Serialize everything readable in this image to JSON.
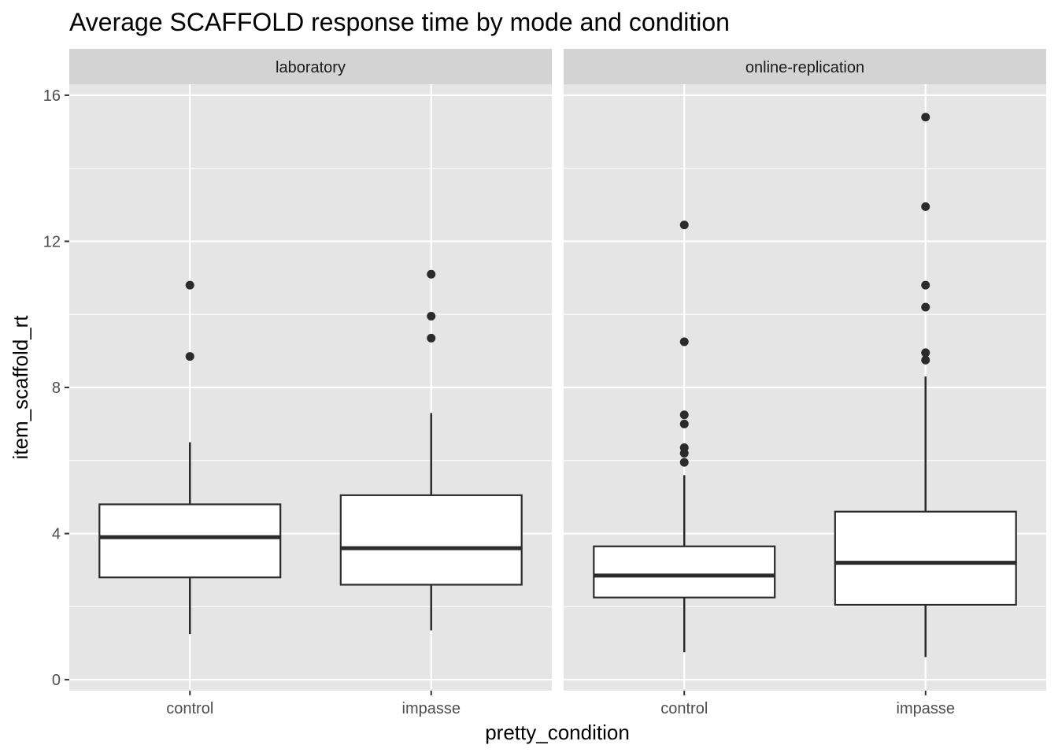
{
  "chart_data": {
    "type": "boxplot",
    "title": "Average SCAFFOLD response time by mode and condition",
    "xlabel": "pretty_condition",
    "ylabel": "item_scaffold_rt",
    "ylim": [
      -0.3,
      16.3
    ],
    "yticks": [
      0,
      4,
      8,
      12,
      16
    ],
    "grid": true,
    "categories": [
      "control",
      "impasse"
    ],
    "colors": {
      "panel_background": "#e5e5e5",
      "strip_background": "#d3d3d3",
      "gridline": "#ffffff",
      "box_fill": "#ffffff",
      "box_stroke": "#2b2b2b",
      "outlier": "#2b2b2b"
    },
    "facets": [
      {
        "label": "laboratory",
        "boxes": [
          {
            "category": "control",
            "whisker_low": 1.25,
            "q1": 2.8,
            "median": 3.9,
            "q3": 4.8,
            "whisker_high": 6.5,
            "outliers": [
              8.85,
              10.8
            ]
          },
          {
            "category": "impasse",
            "whisker_low": 1.35,
            "q1": 2.6,
            "median": 3.6,
            "q3": 5.05,
            "whisker_high": 7.3,
            "outliers": [
              9.35,
              9.95,
              11.1
            ]
          }
        ]
      },
      {
        "label": "online-replication",
        "boxes": [
          {
            "category": "control",
            "whisker_low": 0.75,
            "q1": 2.25,
            "median": 2.85,
            "q3": 3.65,
            "whisker_high": 5.6,
            "outliers": [
              5.95,
              6.2,
              6.35,
              7.0,
              7.25,
              9.25,
              12.45
            ]
          },
          {
            "category": "impasse",
            "whisker_low": 0.62,
            "q1": 2.05,
            "median": 3.2,
            "q3": 4.6,
            "whisker_high": 8.3,
            "outliers": [
              8.75,
              8.95,
              10.2,
              10.8,
              12.95,
              15.4
            ]
          }
        ]
      }
    ]
  }
}
